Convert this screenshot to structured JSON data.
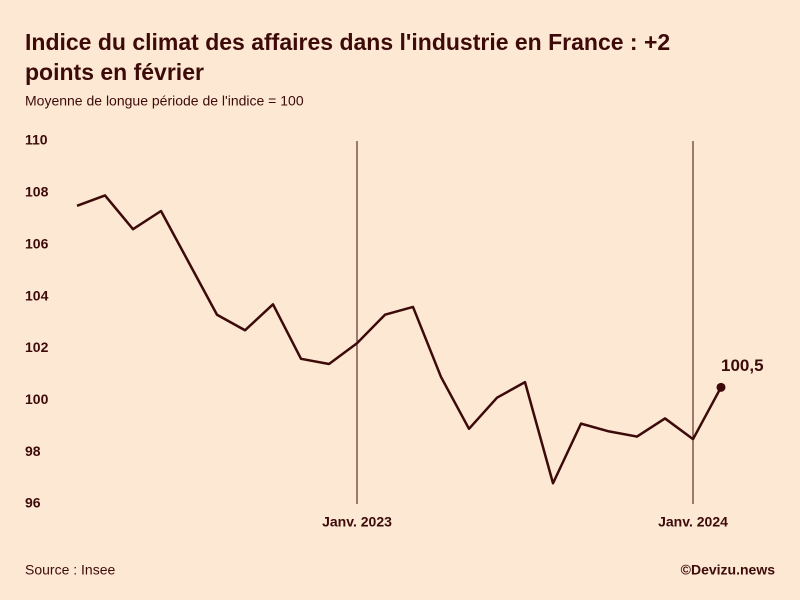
{
  "chart_data": {
    "type": "line",
    "title": "Indice du climat des affaires dans l'industrie en France : +2",
    "title_line2": "points en février",
    "subtitle": "Moyenne de longue période de l'indice = 100",
    "source": "Source : Insee",
    "credit": "©Devizu.news",
    "categories": [
      null,
      null,
      null,
      null,
      null,
      null,
      null,
      null,
      null,
      null,
      "Janv. 2023",
      null,
      null,
      null,
      null,
      null,
      null,
      null,
      null,
      null,
      null,
      null,
      "Janv. 2024",
      null
    ],
    "series": [
      {
        "name": "Indice",
        "color": "#3d0a0a",
        "values": [
          107.5,
          107.9,
          106.6,
          107.3,
          105.3,
          103.3,
          102.7,
          103.7,
          101.6,
          101.4,
          102.2,
          103.3,
          103.6,
          100.9,
          98.9,
          100.1,
          100.7,
          96.8,
          99.1,
          98.8,
          98.6,
          99.3,
          98.5,
          100.5
        ],
        "value_labels": [
          null,
          null,
          null,
          null,
          null,
          null,
          null,
          null,
          null,
          null,
          null,
          null,
          null,
          null,
          null,
          null,
          null,
          null,
          null,
          null,
          null,
          null,
          null,
          "100,5"
        ]
      }
    ],
    "ylim": [
      96,
      110
    ],
    "yticks": [
      96,
      98,
      100,
      102,
      104,
      106,
      108,
      110
    ]
  }
}
